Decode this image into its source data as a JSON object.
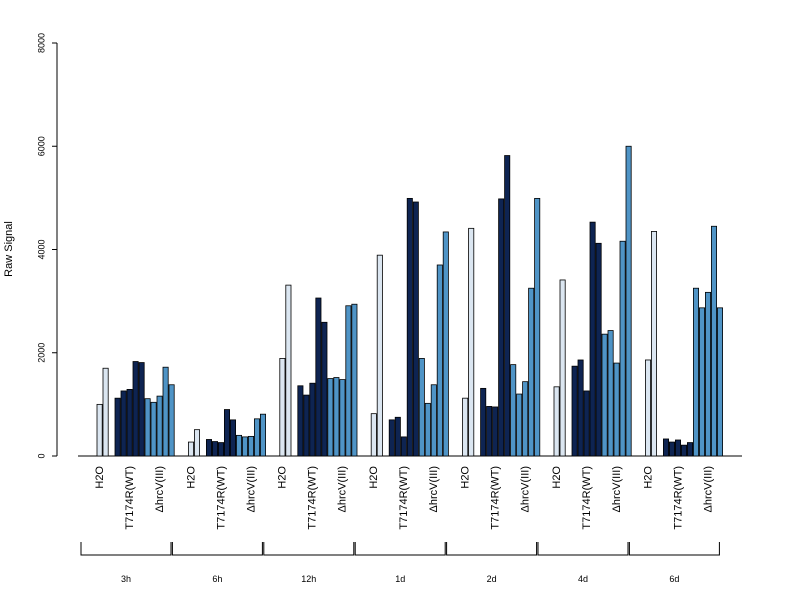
{
  "chart_data": {
    "type": "bar",
    "ylabel": "Raw Signal",
    "ylim": [
      0,
      8000
    ],
    "yticks": [
      "0",
      "2000",
      "4000",
      "6000",
      "8000"
    ],
    "grid": false,
    "colors": {
      "H2O": "#dbe6f1",
      "T7174R(WT)": "#0e2452",
      "ΔhrcV(III)": "#4f94c6",
      "outline": "#000000"
    },
    "groups": [
      {
        "label": "3h",
        "categories": [
          {
            "name": "H2O",
            "values": [
              0,
              1000,
              1700
            ]
          },
          {
            "name": "T7174R(WT)",
            "values": [
              1120,
              1260,
              1290,
              1830,
              1810
            ]
          },
          {
            "name": "ΔhrcV(III)",
            "values": [
              1110,
              1040,
              1160,
              1720,
              1380
            ]
          }
        ]
      },
      {
        "label": "6h",
        "categories": [
          {
            "name": "H2O",
            "values": [
              0,
              270,
              510
            ]
          },
          {
            "name": "T7174R(WT)",
            "values": [
              320,
              280,
              260,
              900,
              700
            ]
          },
          {
            "name": "ΔhrcV(III)",
            "values": [
              400,
              370,
              380,
              720,
              810
            ]
          }
        ]
      },
      {
        "label": "12h",
        "categories": [
          {
            "name": "H2O",
            "values": [
              0,
              1890,
              3310
            ]
          },
          {
            "name": "T7174R(WT)",
            "values": [
              1360,
              1180,
              1410,
              3060,
              2590
            ]
          },
          {
            "name": "ΔhrcV(III)",
            "values": [
              1500,
              1520,
              1480,
              2910,
              2940
            ]
          }
        ]
      },
      {
        "label": "1d",
        "categories": [
          {
            "name": "H2O",
            "values": [
              0,
              820,
              3890
            ]
          },
          {
            "name": "T7174R(WT)",
            "values": [
              700,
              750,
              370,
              4990,
              4920
            ]
          },
          {
            "name": "ΔhrcV(III)",
            "values": [
              1890,
              1020,
              1380,
              3700,
              4340
            ]
          }
        ]
      },
      {
        "label": "2d",
        "categories": [
          {
            "name": "H2O",
            "values": [
              0,
              1120,
              4410
            ]
          },
          {
            "name": "T7174R(WT)",
            "values": [
              1310,
              960,
              950,
              4980,
              5820
            ]
          },
          {
            "name": "ΔhrcV(III)",
            "values": [
              1770,
              1200,
              1440,
              3250,
              4990
            ]
          }
        ]
      },
      {
        "label": "4d",
        "categories": [
          {
            "name": "H2O",
            "values": [
              0,
              1340,
              3410
            ]
          },
          {
            "name": "T7174R(WT)",
            "values": [
              1740,
              1860,
              1260,
              4530,
              4120
            ]
          },
          {
            "name": "ΔhrcV(III)",
            "values": [
              2360,
              2430,
              1800,
              4160,
              6000
            ]
          }
        ]
      },
      {
        "label": "6d",
        "categories": [
          {
            "name": "H2O",
            "values": [
              0,
              1860,
              4350
            ]
          },
          {
            "name": "T7174R(WT)",
            "values": [
              330,
              270,
              310,
              210,
              260
            ]
          },
          {
            "name": "ΔhrcV(III)",
            "values": [
              3250,
              2870,
              3170,
              4450,
              2870
            ]
          }
        ]
      }
    ]
  }
}
